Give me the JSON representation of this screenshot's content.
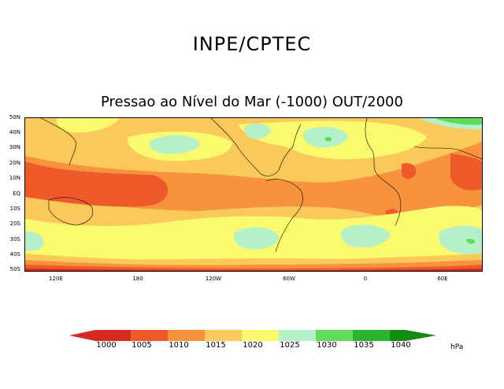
{
  "header": {
    "org_title": "INPE/CPTEC",
    "map_title": "Pressao ao Nível do Mar (-1000) OUT/2000"
  },
  "map": {
    "lat_labels": [
      "50N",
      "40N",
      "30N",
      "20N",
      "10N",
      "EQ",
      "10S",
      "20S",
      "30S",
      "40S",
      "50S"
    ],
    "lon_labels": [
      "120E",
      "180",
      "120W",
      "60W",
      "0",
      "60E"
    ],
    "colors": {
      "c1000": "#d62a1e",
      "c1005": "#ee5a2a",
      "c1010": "#f7923d",
      "c1015": "#fac95a",
      "c1020": "#fafa6e",
      "c1025": "#b4f0c8",
      "c1030": "#5fdc5a",
      "c1035": "#2cb42c",
      "c1040": "#148c14"
    }
  },
  "colorbar": {
    "labels": [
      "1000",
      "1005",
      "1010",
      "1015",
      "1020",
      "1025",
      "1030",
      "1035",
      "1040"
    ],
    "unit": "hPa"
  }
}
